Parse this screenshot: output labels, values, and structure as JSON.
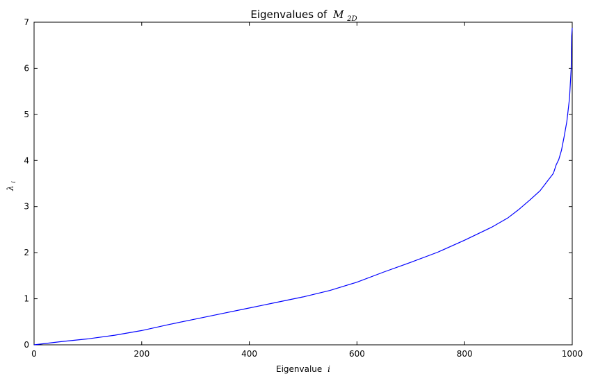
{
  "chart_data": {
    "type": "line",
    "title": "Eigenvalues of",
    "title_math": "M",
    "title_math_subscript": "2D",
    "xlabel": "Eigenvalue",
    "xlabel_math": "i",
    "ylabel": "λ",
    "ylabel_subscript": "i",
    "xlim": [
      0,
      1000
    ],
    "ylim": [
      0,
      7
    ],
    "xticks": [
      0,
      200,
      400,
      600,
      800,
      1000
    ],
    "yticks": [
      0,
      1,
      2,
      3,
      4,
      5,
      6,
      7
    ],
    "grid": false,
    "colors": {
      "line": "#0000ff",
      "axes": "#000000"
    },
    "series": [
      {
        "x": [
          0,
          50,
          100,
          150,
          200,
          250,
          300,
          350,
          400,
          450,
          500,
          550,
          600,
          650,
          700,
          750,
          800,
          850,
          880,
          900,
          920,
          940,
          955,
          965,
          970,
          975,
          980,
          985,
          990,
          995,
          998,
          999,
          1000
        ],
        "values": [
          0,
          0.07,
          0.13,
          0.21,
          0.31,
          0.44,
          0.56,
          0.68,
          0.8,
          0.92,
          1.04,
          1.18,
          1.36,
          1.58,
          1.79,
          2.01,
          2.27,
          2.55,
          2.75,
          2.93,
          3.13,
          3.34,
          3.57,
          3.72,
          3.9,
          4.02,
          4.22,
          4.52,
          4.85,
          5.35,
          6.0,
          6.7,
          6.88
        ]
      }
    ]
  }
}
